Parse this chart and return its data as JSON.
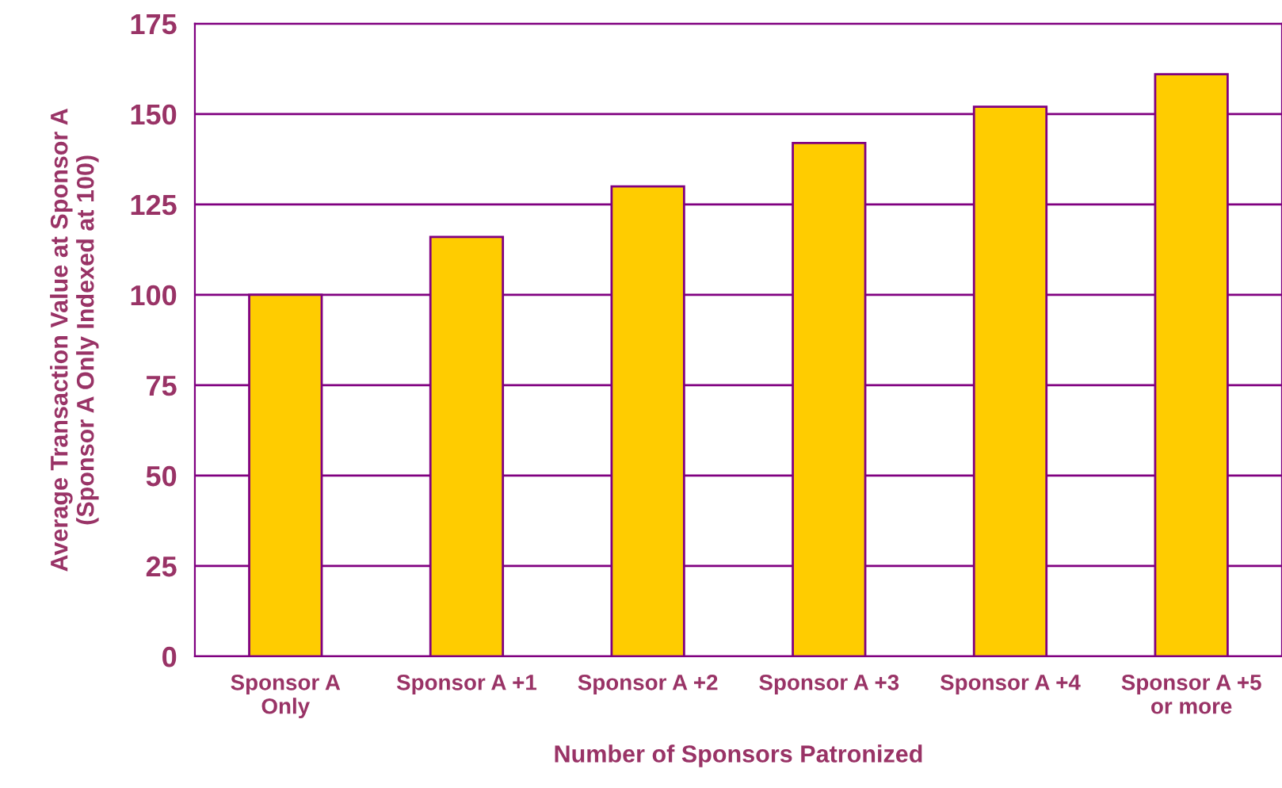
{
  "chart_data": {
    "type": "bar",
    "xlabel": "Number of Sponsors Patronized",
    "ylabel": "Average Transaction Value at Sponsor A\n(Sponsor A Only Indexed at 100)",
    "categories": [
      "Sponsor A\nOnly",
      "Sponsor A +1",
      "Sponsor A +2",
      "Sponsor A +3",
      "Sponsor A +4",
      "Sponsor A +5\nor more"
    ],
    "values": [
      100,
      116,
      130,
      142,
      152,
      161
    ],
    "color": "#ffcc00",
    "ylim": [
      0,
      175
    ],
    "yticks": [
      0,
      25,
      50,
      75,
      100,
      125,
      150,
      175
    ],
    "grid": "y",
    "legend": false
  }
}
